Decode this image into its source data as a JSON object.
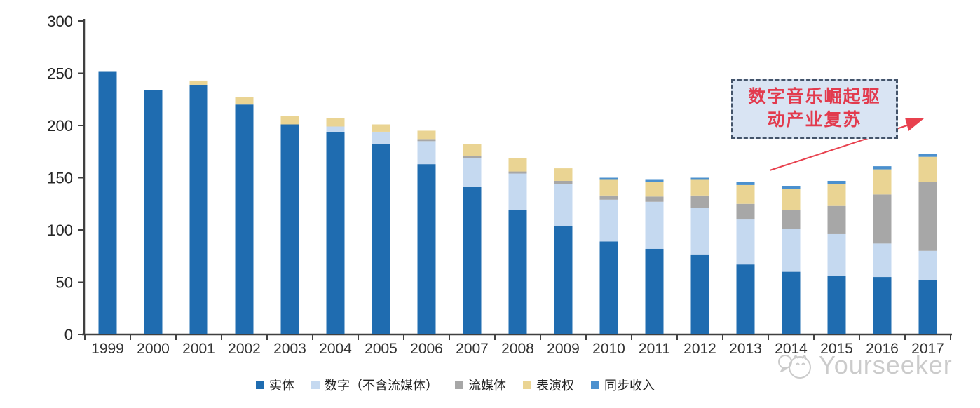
{
  "chart_data": {
    "type": "bar",
    "stacked": true,
    "categories": [
      "1999",
      "2000",
      "2001",
      "2002",
      "2003",
      "2004",
      "2005",
      "2006",
      "2007",
      "2008",
      "2009",
      "2010",
      "2011",
      "2012",
      "2013",
      "2014",
      "2015",
      "2016",
      "2017"
    ],
    "series": [
      {
        "name": "实体",
        "color": "#1F6CB0",
        "values": [
          252,
          234,
          239,
          220,
          201,
          194,
          182,
          163,
          141,
          119,
          104,
          89,
          82,
          76,
          67,
          60,
          56,
          55,
          52
        ]
      },
      {
        "name": "数字（不含流媒体）",
        "color": "#C5D9F0",
        "values": [
          0,
          0,
          0,
          0,
          0,
          5,
          12,
          22,
          28,
          35,
          40,
          40,
          45,
          45,
          43,
          41,
          40,
          32,
          28
        ]
      },
      {
        "name": "流媒体",
        "color": "#A7A7A7",
        "values": [
          0,
          0,
          0,
          0,
          0,
          0,
          0,
          2,
          2,
          2,
          3,
          4,
          5,
          12,
          15,
          18,
          27,
          47,
          66
        ]
      },
      {
        "name": "表演权",
        "color": "#EAD493",
        "values": [
          0,
          0,
          4,
          7,
          8,
          8,
          7,
          8,
          11,
          13,
          12,
          15,
          14,
          15,
          18,
          20,
          21,
          24,
          24
        ]
      },
      {
        "name": "同步收入",
        "color": "#4B90CE",
        "values": [
          0,
          0,
          0,
          0,
          0,
          0,
          0,
          0,
          0,
          0,
          0,
          2,
          2,
          2,
          3,
          3,
          3,
          3,
          3
        ]
      }
    ],
    "totals": [
      252,
      234,
      243,
      227,
      209,
      207,
      201,
      195,
      182,
      169,
      159,
      150,
      148,
      150,
      146,
      142,
      147,
      161,
      173
    ],
    "ylim": [
      0,
      300
    ],
    "yticks": [
      0,
      50,
      100,
      150,
      200,
      250,
      300
    ],
    "grid": false,
    "legend_position": "bottom",
    "xlabel": "",
    "ylabel": ""
  },
  "annotation": {
    "line1": "数字音乐崛起驱",
    "line2": "动产业复苏",
    "text_color": "#E23B4E",
    "box_fill": "#D9E4F3",
    "box_border_color": "#44546A",
    "arrow_color": "#E8414E"
  },
  "watermark": {
    "text": "Yourseeker",
    "color": "#C6C6C6"
  },
  "axis_colors": {
    "axis_line": "#404040",
    "tick_label": "#262626"
  }
}
